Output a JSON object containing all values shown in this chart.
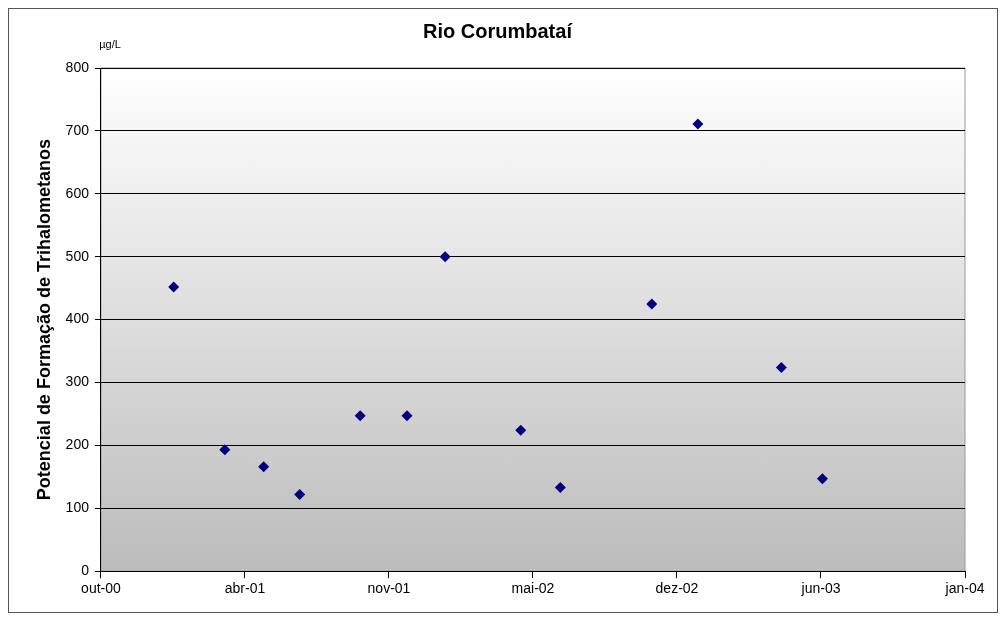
{
  "chart_data": {
    "type": "scatter",
    "title": "Rio Corumbataí",
    "ylabel": "Potencial de Formação de Trihalometanos",
    "annotations": [
      "µg/L"
    ],
    "x": [
      "2001-01-10",
      "2001-03-22",
      "2001-05-15",
      "2001-07-04",
      "2001-09-26",
      "2001-11-30",
      "2002-01-22",
      "2002-05-07",
      "2002-07-01",
      "2002-11-05",
      "2003-01-08",
      "2003-05-04",
      "2003-06-30"
    ],
    "series": [
      {
        "color": "#000080",
        "values": [
          452,
          193,
          166,
          122,
          247,
          247,
          500,
          224,
          133,
          425,
          711,
          324,
          147
        ]
      }
    ],
    "xlim": [
      "2000-10-01",
      "2004-01-14"
    ],
    "xticks": [
      {
        "value": "2000-10-01",
        "label": "out-00"
      },
      {
        "value": "2001-04-19",
        "label": "abr-01"
      },
      {
        "value": "2001-11-05",
        "label": "nov-01"
      },
      {
        "value": "2002-05-24",
        "label": "mai-02"
      },
      {
        "value": "2002-12-10",
        "label": "dez-02"
      },
      {
        "value": "2003-06-28",
        "label": "jun-03"
      },
      {
        "value": "2004-01-14",
        "label": "jan-04"
      }
    ],
    "ylim": [
      0,
      800
    ],
    "yticks": [
      0,
      100,
      200,
      300,
      400,
      500,
      600,
      700,
      800
    ],
    "grid": "y",
    "legend": false,
    "marker": "diamond"
  }
}
